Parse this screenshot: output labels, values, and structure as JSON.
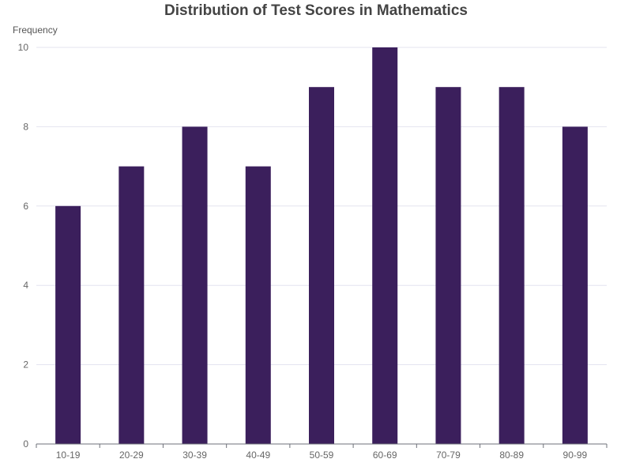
{
  "chart_data": {
    "type": "bar",
    "title": "Distribution of Test Scores in Mathematics",
    "xlabel": "",
    "ylabel": "Frequency",
    "categories": [
      "10-19",
      "20-29",
      "30-39",
      "40-49",
      "50-59",
      "60-69",
      "70-79",
      "80-89",
      "90-99"
    ],
    "values": [
      6,
      7,
      8,
      7,
      9,
      10,
      9,
      9,
      8
    ],
    "ylim": [
      0,
      10
    ],
    "yticks": [
      0,
      2,
      4,
      6,
      8,
      10
    ],
    "grid": true,
    "legend": "none",
    "bar_color": "#3b1f5c"
  }
}
